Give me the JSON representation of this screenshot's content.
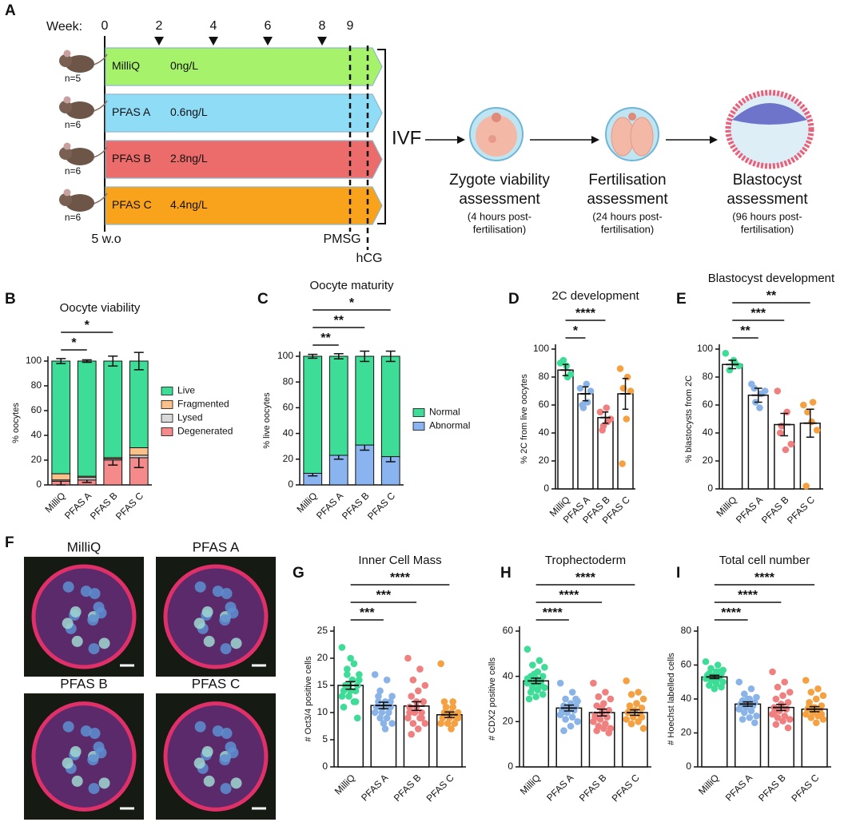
{
  "panel_labels": [
    "A",
    "B",
    "C",
    "D",
    "E",
    "F",
    "G",
    "H",
    "I"
  ],
  "schematic": {
    "week_label": "Week:",
    "weeks": [
      "0",
      "2",
      "4",
      "6",
      "8",
      "9"
    ],
    "groups": [
      {
        "name": "MilliQ",
        "dose": "0ng/L",
        "n": "n=5",
        "color": "#a6f26b"
      },
      {
        "name": "PFAS A",
        "dose": "0.6ng/L",
        "n": "n=6",
        "color": "#8fdcf7"
      },
      {
        "name": "PFAS B",
        "dose": "2.8ng/L",
        "n": "n=6",
        "color": "#ec6b6b"
      },
      {
        "name": "PFAS C",
        "dose": "4.4ng/L",
        "n": "n=6",
        "color": "#f9a21b"
      }
    ],
    "start": "5 w.o",
    "pmsg": "PMSG",
    "hcg": "hCG",
    "ivf": "IVF",
    "steps": [
      {
        "title": [
          "Zygote viability",
          "assessment"
        ],
        "note": [
          "(4 hours post-",
          "fertilisation)"
        ]
      },
      {
        "title": [
          "Fertilisation",
          "assessment"
        ],
        "note": [
          "(24 hours post-",
          "fertilisation)"
        ]
      },
      {
        "title": [
          "Blastocyst",
          "assessment"
        ],
        "note": [
          "(96 hours post-",
          "fertilisation)"
        ]
      }
    ]
  },
  "images": {
    "labels": [
      "MilliQ",
      "PFAS A",
      "PFAS B",
      "PFAS C"
    ]
  },
  "chart_data": [
    {
      "type": "stacked_bar",
      "title": "Oocyte viability",
      "y_label": "% oocytes",
      "categories": [
        "MilliQ",
        "PFAS A",
        "PFAS B",
        "PFAS C"
      ],
      "series": [
        {
          "name": "Live",
          "color": "#3ddc97",
          "values": [
            91,
            93,
            78,
            70
          ],
          "errors": [
            2,
            1,
            4,
            7
          ]
        },
        {
          "name": "Fragmented",
          "color": "#f9c089",
          "values": [
            5,
            1,
            1,
            6
          ]
        },
        {
          "name": "Lysed",
          "color": "#d9d9d9",
          "values": [
            1,
            2,
            1,
            2
          ]
        },
        {
          "name": "Degenerated",
          "color": "#f48a8a",
          "values": [
            3,
            4,
            20,
            22
          ],
          "errors": [
            3,
            2,
            4,
            8
          ]
        }
      ],
      "ylim": [
        0,
        100
      ],
      "yticks": [
        0,
        20,
        40,
        60,
        80,
        100
      ],
      "comparisons": [
        {
          "to": "PFAS A",
          "label": "*"
        },
        {
          "to": "PFAS B",
          "label": "*"
        }
      ]
    },
    {
      "type": "stacked_bar",
      "title": "Oocyte maturity",
      "y_label": "% live oocytes",
      "categories": [
        "MilliQ",
        "PFAS A",
        "PFAS B",
        "PFAS C"
      ],
      "series": [
        {
          "name": "Normal",
          "color": "#3ddc97",
          "values": [
            91,
            77,
            69,
            78
          ],
          "errors": [
            1.5,
            2,
            4,
            4
          ]
        },
        {
          "name": "Abnormal",
          "color": "#8ab4f0",
          "values": [
            9,
            23,
            31,
            22
          ],
          "errors": [
            2,
            3,
            4,
            4
          ]
        }
      ],
      "ylim": [
        0,
        100
      ],
      "yticks": [
        0,
        20,
        40,
        60,
        80,
        100
      ],
      "comparisons": [
        {
          "to": "PFAS A",
          "label": "**"
        },
        {
          "to": "PFAS B",
          "label": "**"
        },
        {
          "to": "PFAS C",
          "label": "*"
        }
      ]
    },
    {
      "type": "dot_bar",
      "title": "2C development",
      "y_label": "% 2C from live oocytes",
      "categories": [
        "MilliQ",
        "PFAS A",
        "PFAS B",
        "PFAS C"
      ],
      "colors": [
        "#3ddc97",
        "#8ab4e8",
        "#f08080",
        "#f5a142"
      ],
      "values": [
        85,
        68,
        51,
        68
      ],
      "errors": [
        4,
        5,
        4,
        11
      ],
      "points": [
        [
          90,
          80,
          92,
          82,
          88
        ],
        [
          72,
          62,
          58,
          70,
          75,
          60
        ],
        [
          55,
          48,
          45,
          50,
          58,
          42
        ],
        [
          86,
          80,
          72,
          70,
          50,
          18
        ]
      ],
      "ylim": [
        0,
        100
      ],
      "yticks": [
        0,
        20,
        40,
        60,
        80,
        100
      ],
      "comparisons": [
        {
          "to": "PFAS A",
          "label": "*"
        },
        {
          "to": "PFAS B",
          "label": "****"
        }
      ]
    },
    {
      "type": "dot_bar",
      "title": "Blastocyst development",
      "y_label": "% blastocysts from 2C",
      "categories": [
        "MilliQ",
        "PFAS A",
        "PFAS B",
        "PFAS C"
      ],
      "colors": [
        "#3ddc97",
        "#8ab4e8",
        "#f08080",
        "#f5a142"
      ],
      "values": [
        89,
        67,
        46,
        47
      ],
      "errors": [
        3,
        5,
        8,
        10
      ],
      "points": [
        [
          97,
          90,
          85,
          88,
          92
        ],
        [
          75,
          68,
          62,
          70,
          58,
          72
        ],
        [
          70,
          55,
          45,
          32,
          28,
          40
        ],
        [
          60,
          62,
          55,
          42,
          48,
          2
        ]
      ],
      "ylim": [
        0,
        100
      ],
      "yticks": [
        0,
        20,
        40,
        60,
        80,
        100
      ],
      "comparisons": [
        {
          "to": "PFAS A",
          "label": "**"
        },
        {
          "to": "PFAS B",
          "label": "***"
        },
        {
          "to": "PFAS C",
          "label": "**"
        }
      ]
    },
    {
      "type": "dot_bar",
      "title": "Inner Cell Mass",
      "y_label": "# Oct3/4 positive cells",
      "categories": [
        "MilliQ",
        "PFAS A",
        "PFAS B",
        "PFAS C"
      ],
      "colors": [
        "#3ddc97",
        "#8ab4e8",
        "#f08080",
        "#f5a142"
      ],
      "values": [
        15,
        11.3,
        11.2,
        9.6
      ],
      "errors": [
        0.7,
        0.6,
        0.8,
        0.5
      ],
      "points": [
        [
          22,
          19,
          17,
          16,
          16,
          15,
          15,
          14,
          14,
          14,
          13,
          13,
          12,
          18,
          17,
          16,
          15,
          9,
          20,
          11,
          12,
          15
        ],
        [
          17,
          16,
          14,
          13,
          12,
          12,
          11,
          11,
          11,
          10,
          10,
          10,
          9,
          9,
          8,
          7,
          13,
          12,
          8,
          11
        ],
        [
          20,
          18,
          16,
          15,
          14,
          13,
          12,
          12,
          11,
          10,
          10,
          9,
          9,
          8,
          8,
          7,
          6,
          12,
          11,
          10,
          9
        ],
        [
          19,
          12,
          11,
          10,
          10,
          10,
          9,
          9,
          9,
          8,
          8,
          8,
          11,
          10,
          9,
          7,
          12
        ]
      ],
      "ylim": [
        0,
        25
      ],
      "yticks": [
        0,
        5,
        10,
        15,
        20,
        25
      ],
      "comparisons": [
        {
          "to": "PFAS A",
          "label": "***"
        },
        {
          "to": "PFAS B",
          "label": "***"
        },
        {
          "to": "PFAS C",
          "label": "****"
        }
      ]
    },
    {
      "type": "dot_bar",
      "title": "Trophectoderm",
      "y_label": "# CDX2 positive cells",
      "categories": [
        "MilliQ",
        "PFAS A",
        "PFAS B",
        "PFAS C"
      ],
      "colors": [
        "#3ddc97",
        "#8ab4e8",
        "#f08080",
        "#f5a142"
      ],
      "values": [
        38,
        26,
        24,
        24
      ],
      "errors": [
        1.2,
        1.3,
        1.5,
        1.2
      ],
      "points": [
        [
          52,
          47,
          45,
          44,
          42,
          40,
          40,
          39,
          38,
          38,
          37,
          37,
          36,
          35,
          35,
          34,
          33,
          32,
          31,
          30,
          36,
          41,
          39,
          38
        ],
        [
          37,
          33,
          30,
          29,
          28,
          27,
          27,
          26,
          25,
          25,
          24,
          23,
          22,
          21,
          20,
          18,
          16,
          30,
          26,
          24
        ],
        [
          37,
          33,
          31,
          30,
          28,
          27,
          25,
          24,
          23,
          22,
          21,
          20,
          19,
          18,
          17,
          17,
          16,
          15,
          26,
          22
        ],
        [
          38,
          33,
          32,
          30,
          28,
          27,
          26,
          25,
          24,
          23,
          22,
          21,
          20,
          19,
          17,
          28,
          25,
          22
        ]
      ],
      "ylim": [
        0,
        60
      ],
      "yticks": [
        0,
        20,
        40,
        60
      ],
      "comparisons": [
        {
          "to": "PFAS A",
          "label": "****"
        },
        {
          "to": "PFAS B",
          "label": "****"
        },
        {
          "to": "PFAS C",
          "label": "****"
        }
      ]
    },
    {
      "type": "dot_bar",
      "title": "Total cell number",
      "y_label": "# Hoechst labelled cells",
      "categories": [
        "MilliQ",
        "PFAS A",
        "PFAS B",
        "PFAS C"
      ],
      "colors": [
        "#3ddc97",
        "#8ab4e8",
        "#f08080",
        "#f5a142"
      ],
      "values": [
        53,
        37,
        35,
        34
      ],
      "errors": [
        1,
        1.3,
        1.8,
        1.5
      ],
      "points": [
        [
          62,
          60,
          58,
          57,
          56,
          55,
          55,
          54,
          54,
          53,
          53,
          52,
          52,
          51,
          50,
          49,
          48,
          47,
          46,
          53,
          56,
          51
        ],
        [
          50,
          46,
          43,
          41,
          40,
          39,
          38,
          38,
          37,
          36,
          35,
          34,
          33,
          32,
          30,
          29,
          28,
          26,
          40,
          36
        ],
        [
          56,
          50,
          47,
          44,
          42,
          40,
          38,
          36,
          35,
          34,
          33,
          31,
          30,
          29,
          28,
          27,
          25,
          23,
          37,
          32
        ],
        [
          51,
          46,
          44,
          42,
          40,
          38,
          36,
          35,
          34,
          33,
          32,
          31,
          30,
          29,
          28,
          26,
          36,
          31
        ]
      ],
      "ylim": [
        0,
        80
      ],
      "yticks": [
        0,
        20,
        40,
        60,
        80
      ],
      "comparisons": [
        {
          "to": "PFAS A",
          "label": "****"
        },
        {
          "to": "PFAS B",
          "label": "****"
        },
        {
          "to": "PFAS C",
          "label": "****"
        }
      ]
    }
  ]
}
